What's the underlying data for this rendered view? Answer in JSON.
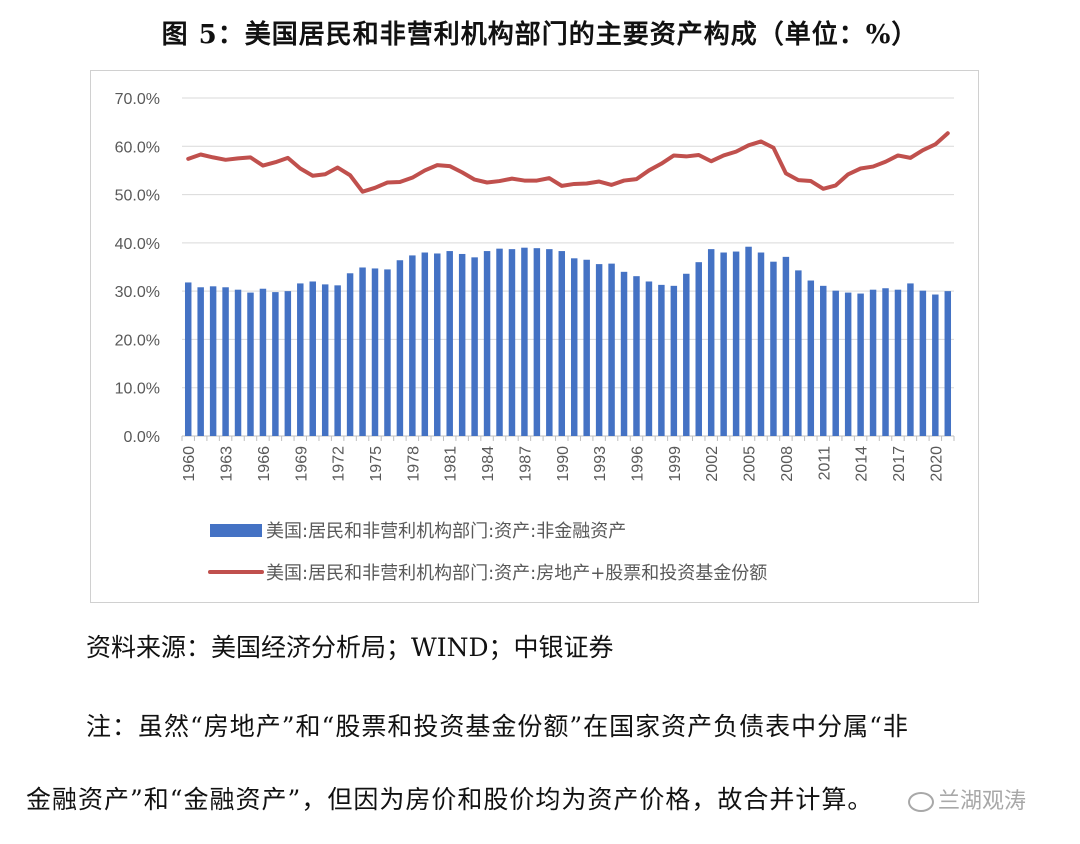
{
  "figure": {
    "title": "图 5：美国居民和非营利机构部门的主要资产构成（单位：%）"
  },
  "chart_data": {
    "type": "bar",
    "x": [
      1960,
      1961,
      1962,
      1963,
      1964,
      1965,
      1966,
      1967,
      1968,
      1969,
      1970,
      1971,
      1972,
      1973,
      1974,
      1975,
      1976,
      1977,
      1978,
      1979,
      1980,
      1981,
      1982,
      1983,
      1984,
      1985,
      1986,
      1987,
      1988,
      1989,
      1990,
      1991,
      1992,
      1993,
      1994,
      1995,
      1996,
      1997,
      1998,
      1999,
      2000,
      2001,
      2002,
      2003,
      2004,
      2005,
      2006,
      2007,
      2008,
      2009,
      2010,
      2011,
      2012,
      2013,
      2014,
      2015,
      2016,
      2017,
      2018,
      2019,
      2020,
      2021
    ],
    "tick_labels": [
      "1960",
      "1963",
      "1966",
      "1969",
      "1972",
      "1975",
      "1978",
      "1981",
      "1984",
      "1987",
      "1990",
      "1993",
      "1996",
      "1999",
      "2002",
      "2005",
      "2008",
      "2011",
      "2014",
      "2017",
      "2020"
    ],
    "y_tick_labels": [
      "0.0%",
      "10.0%",
      "20.0%",
      "30.0%",
      "40.0%",
      "50.0%",
      "60.0%",
      "70.0%"
    ],
    "ylim": [
      0,
      70
    ],
    "grid": true,
    "legend_position": "bottom",
    "series": [
      {
        "name": "美国:居民和非营利机构部门:资产:非金融资产",
        "kind": "bar",
        "color": "#4472c4",
        "values": [
          31.8,
          30.8,
          31.0,
          30.8,
          30.3,
          29.7,
          30.5,
          29.8,
          30.0,
          31.6,
          32.0,
          31.4,
          31.2,
          33.7,
          34.9,
          34.7,
          34.5,
          36.4,
          37.4,
          38.0,
          37.8,
          38.3,
          37.7,
          37.0,
          38.3,
          38.8,
          38.7,
          39.0,
          38.9,
          38.7,
          38.3,
          36.8,
          36.5,
          35.6,
          35.7,
          34.0,
          33.1,
          32.0,
          31.3,
          31.1,
          33.6,
          36.0,
          38.7,
          38.0,
          38.2,
          39.2,
          38.0,
          36.1,
          37.1,
          34.3,
          32.2,
          31.1,
          30.1,
          29.7,
          29.5,
          30.3,
          30.6,
          30.3,
          31.6,
          30.1,
          29.3,
          30.0
        ]
      },
      {
        "name": "美国:居民和非营利机构部门:资产:房地产+股票和投资基金份额",
        "kind": "line",
        "color": "#c0504d",
        "values": [
          57.4,
          58.3,
          57.7,
          57.2,
          57.5,
          57.7,
          56.0,
          56.7,
          57.6,
          55.4,
          53.9,
          54.2,
          55.6,
          54.0,
          50.6,
          51.4,
          52.5,
          52.6,
          53.5,
          55.0,
          56.1,
          55.9,
          54.6,
          53.1,
          52.5,
          52.8,
          53.3,
          52.9,
          52.9,
          53.4,
          51.8,
          52.2,
          52.3,
          52.7,
          52.0,
          52.9,
          53.2,
          55.0,
          56.4,
          58.1,
          57.9,
          58.2,
          56.9,
          58.1,
          58.9,
          60.2,
          61.0,
          59.7,
          54.4,
          53.0,
          52.8,
          51.2,
          51.9,
          54.2,
          55.4,
          55.8,
          56.8,
          58.1,
          57.6,
          59.2,
          60.4,
          62.7
        ]
      }
    ]
  },
  "source_text": "资料来源：美国经济分析局；WIND；中银证券",
  "note_line1": "注：虽然“房地产”和“股票和投资基金份额”在国家资产负债表中分属“非",
  "note_line2": "金融资产”和“金融资产”，但因为房价和股价均为资产价格，故合并计算。",
  "watermark": "兰湖观涛"
}
